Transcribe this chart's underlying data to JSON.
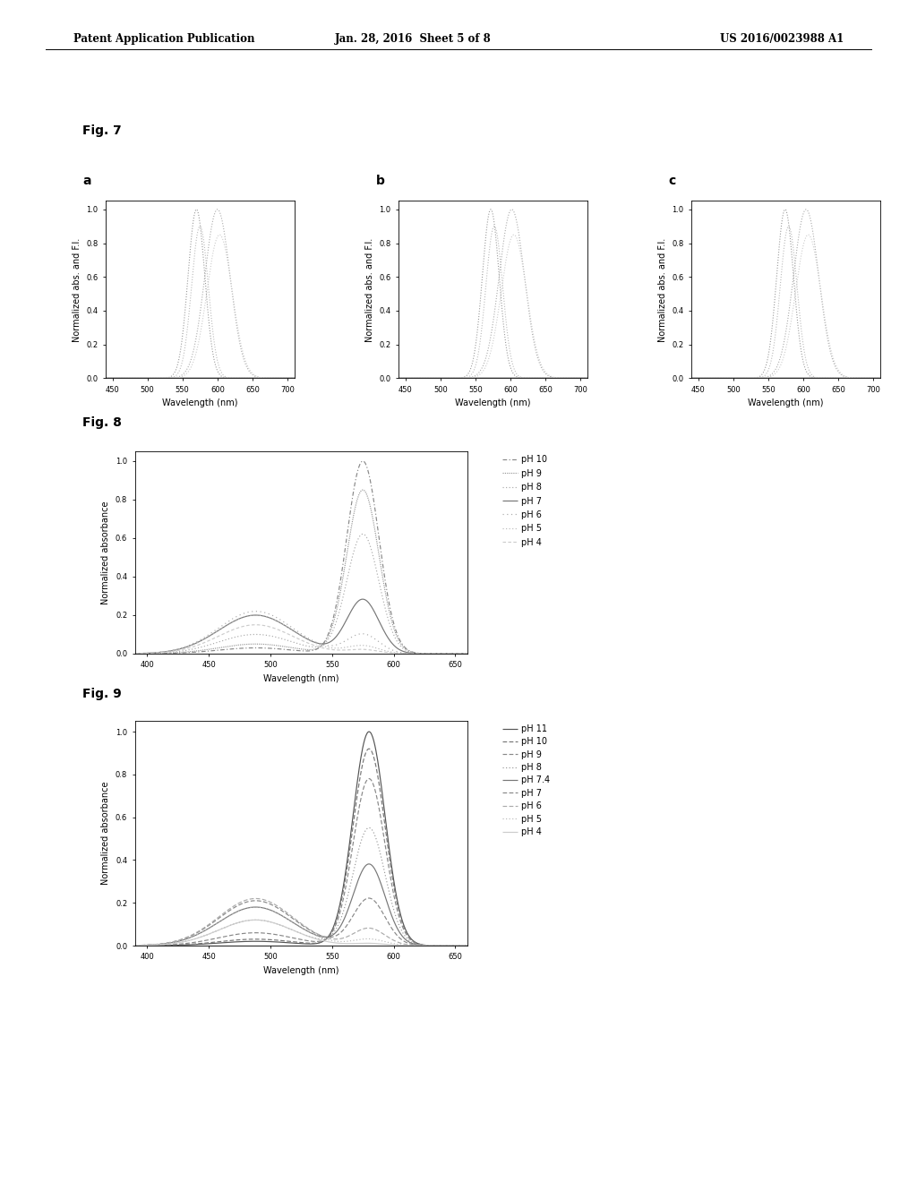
{
  "header_left": "Patent Application Publication",
  "header_center": "Jan. 28, 2016  Sheet 5 of 8",
  "header_right": "US 2016/0023988 A1",
  "fig7_ylabel": "Normalized abs. and F.I.",
  "fig7_xlabel": "Wavelength (nm)",
  "fig7_xlim": [
    440,
    710
  ],
  "fig7_ylim": [
    0,
    1.05
  ],
  "fig7_xticks": [
    450,
    500,
    550,
    600,
    650,
    700
  ],
  "fig7_yticks": [
    0,
    0.2,
    0.4,
    0.6,
    0.8,
    1
  ],
  "fig8_ylabel": "Normalized absorbance",
  "fig8_xlabel": "Wavelength (nm)",
  "fig8_xlim": [
    390,
    660
  ],
  "fig8_ylim": [
    0,
    1.05
  ],
  "fig8_xticks": [
    400,
    450,
    500,
    550,
    600,
    650
  ],
  "fig8_yticks": [
    0,
    0.2,
    0.4,
    0.6,
    0.8,
    1
  ],
  "fig9_ylabel": "Normalized absorbance",
  "fig9_xlabel": "Wavelength (nm)",
  "fig9_xlim": [
    390,
    660
  ],
  "fig9_ylim": [
    0,
    1.05
  ],
  "fig9_xticks": [
    400,
    450,
    500,
    550,
    600,
    650
  ],
  "fig9_yticks": [
    0,
    0.2,
    0.4,
    0.6,
    0.8,
    1
  ],
  "fig8_legend": [
    "pH 10",
    "pH 9",
    "pH 8",
    "pH 7",
    "pH 6",
    "pH 5",
    "pH 4"
  ],
  "fig9_legend": [
    "pH 11",
    "pH 10",
    "pH 9",
    "pH 8",
    "pH 7.4",
    "pH 7",
    "pH 6",
    "pH 5",
    "pH 4"
  ],
  "background_color": "#ffffff",
  "label_fontsize": 7,
  "tick_fontsize": 6,
  "fig_label_fontsize": 10,
  "legend_fontsize": 7
}
